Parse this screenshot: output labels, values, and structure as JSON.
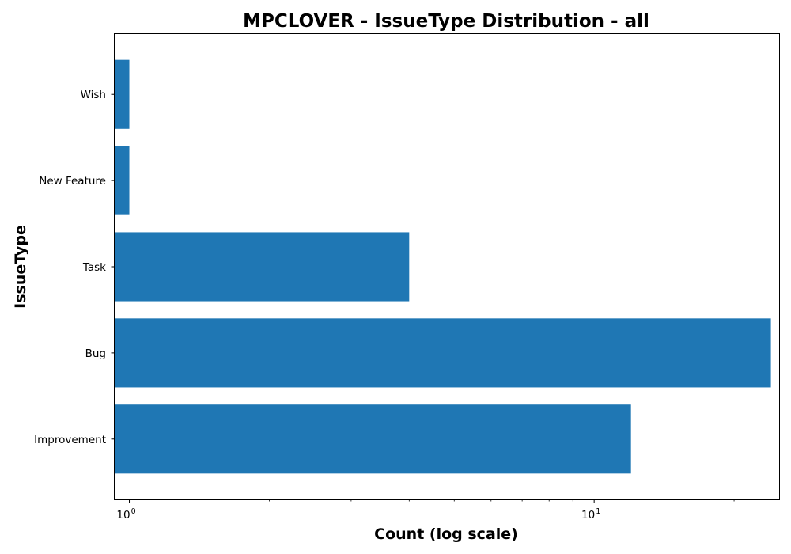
{
  "chart_data": {
    "type": "bar",
    "orientation": "horizontal",
    "title": "MPCLOVER - IssueType Distribution - all",
    "xlabel": "Count (log scale)",
    "ylabel": "IssueType",
    "xscale": "log",
    "xlim": [
      0.93,
      25
    ],
    "x_major_ticks": [
      {
        "value": 1,
        "base": "10",
        "exponent": "0"
      },
      {
        "value": 10,
        "base": "10",
        "exponent": "1"
      }
    ],
    "x_minor_ticks": [
      2,
      3,
      4,
      5,
      6,
      7,
      8,
      9,
      20
    ],
    "categories": [
      "Improvement",
      "Bug",
      "Task",
      "New Feature",
      "Wish"
    ],
    "values": [
      12,
      24,
      4,
      1,
      1
    ],
    "bar_color": "#1f77b4",
    "grid": false,
    "legend": "none"
  }
}
